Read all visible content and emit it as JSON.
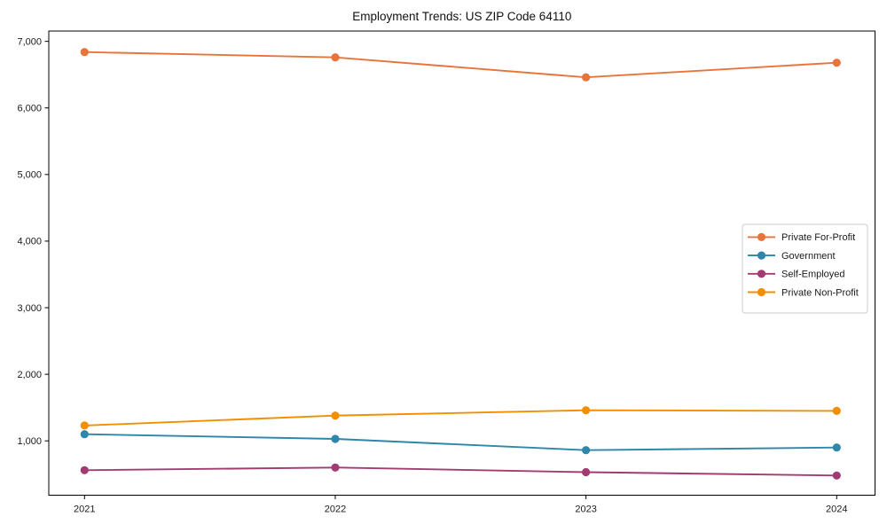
{
  "chart_data": {
    "type": "line",
    "title": "Employment Trends: US ZIP Code 64110",
    "xlabel": "",
    "ylabel": "",
    "x": [
      2021,
      2022,
      2023,
      2024
    ],
    "xtick_labels": [
      "2021",
      "2022",
      "2023",
      "2024"
    ],
    "yticks": [
      1000,
      2000,
      3000,
      4000,
      5000,
      6000,
      7000
    ],
    "ytick_labels": [
      "1,000",
      "2,000",
      "3,000",
      "4,000",
      "5,000",
      "6,000",
      "7,000"
    ],
    "ylim": [
      184,
      7155
    ],
    "grid": false,
    "marker": "circle",
    "legend_position": "center right",
    "legend_border_color": "#cccccc",
    "axis_color": "#000000",
    "background_color": "#ffffff",
    "series": [
      {
        "name": "Private For-Profit",
        "color": "#E8743B",
        "values": [
          6840,
          6760,
          6460,
          6680
        ]
      },
      {
        "name": "Government",
        "color": "#2E86AB",
        "values": [
          1100,
          1030,
          860,
          900
        ]
      },
      {
        "name": "Self-Employed",
        "color": "#A23B72",
        "values": [
          560,
          600,
          530,
          480
        ]
      },
      {
        "name": "Private Non-Profit",
        "color": "#F18F01",
        "values": [
          1230,
          1380,
          1460,
          1450
        ]
      }
    ]
  }
}
